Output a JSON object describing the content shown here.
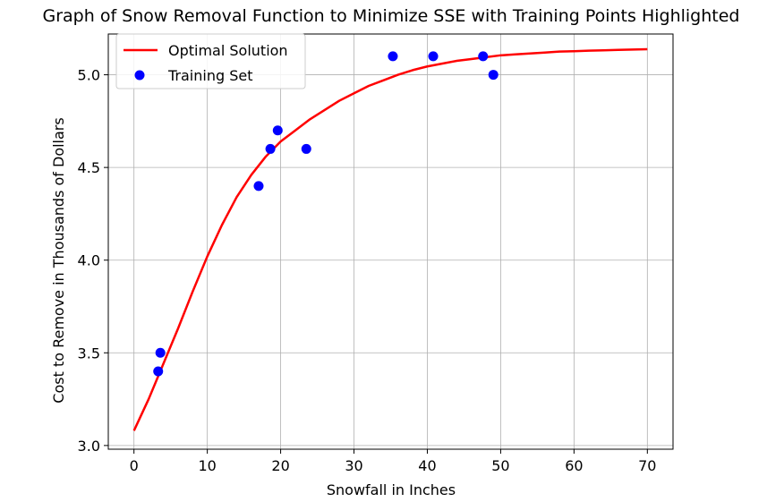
{
  "chart_data": {
    "type": "scatter",
    "title": "Graph of Snow Removal Function to Minimize SSE with Training Points Highlighted",
    "xlabel": "Snowfall in Inches",
    "ylabel": "Cost to Remove in Thousands of Dollars",
    "xlim": [
      -3.5,
      73.5
    ],
    "ylim": [
      2.98,
      5.22
    ],
    "xticks": [
      0,
      10,
      20,
      30,
      40,
      50,
      60,
      70
    ],
    "xtick_labels": [
      "0",
      "10",
      "20",
      "30",
      "40",
      "50",
      "60",
      "70"
    ],
    "yticks": [
      3.0,
      3.5,
      4.0,
      4.5,
      5.0
    ],
    "ytick_labels": [
      "3.0",
      "3.5",
      "4.0",
      "4.5",
      "5.0"
    ],
    "grid": true,
    "legend_position": "top-left",
    "series": [
      {
        "name": "Optimal Solution",
        "kind": "line",
        "color": "#ff0000",
        "x": [
          0,
          2,
          4,
          6,
          8,
          10,
          12,
          14,
          16,
          18,
          20,
          22,
          24,
          26,
          28,
          30,
          32,
          34,
          36,
          38,
          40,
          42,
          44,
          46,
          48,
          50,
          52,
          54,
          56,
          58,
          60,
          62,
          64,
          66,
          68,
          70
        ],
        "y": [
          3.08,
          3.25,
          3.44,
          3.63,
          3.83,
          4.02,
          4.19,
          4.34,
          4.46,
          4.56,
          4.64,
          4.7,
          4.76,
          4.81,
          4.86,
          4.9,
          4.94,
          4.97,
          5.0,
          5.025,
          5.045,
          5.06,
          5.075,
          5.085,
          5.095,
          5.105,
          5.11,
          5.115,
          5.12,
          5.125,
          5.127,
          5.13,
          5.132,
          5.134,
          5.136,
          5.138
        ]
      },
      {
        "name": "Training Set",
        "kind": "scatter",
        "color": "#0000ff",
        "x": [
          3.3,
          3.6,
          17.0,
          18.6,
          19.6,
          23.5,
          35.3,
          40.8,
          47.6,
          49.0
        ],
        "y": [
          3.4,
          3.5,
          4.4,
          4.6,
          4.7,
          4.6,
          5.1,
          5.1,
          5.1,
          5.0
        ]
      }
    ]
  }
}
